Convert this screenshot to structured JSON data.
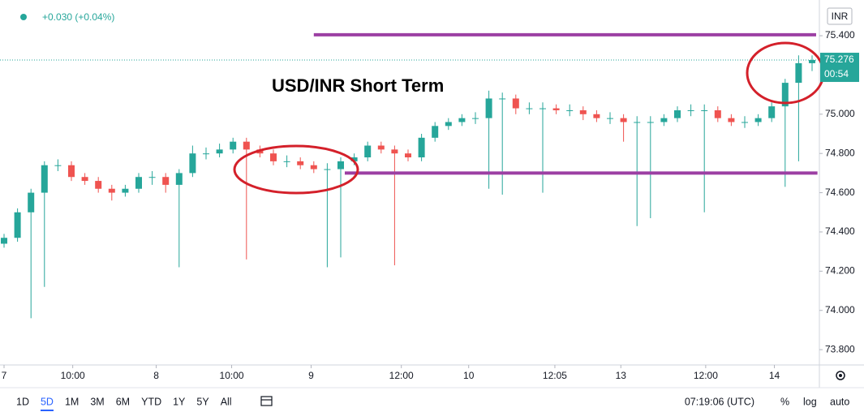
{
  "chart_data": {
    "type": "candlestick",
    "change": "+0.030 (+0.04%)",
    "currency": "INR",
    "annotation": "USD/INR Short Term",
    "countdown": "00:54",
    "up_color": "#26a69a",
    "down_color": "#ef5350",
    "level_color": "#9c3fa3",
    "open": [
      74.34,
      74.37,
      74.5,
      74.6,
      74.74,
      74.74,
      74.68,
      74.66,
      74.62,
      74.6,
      74.62,
      74.68,
      74.68,
      74.64,
      74.7,
      74.8,
      74.8,
      74.82,
      74.86,
      74.82,
      74.8,
      74.76,
      74.76,
      74.74,
      74.72,
      74.72,
      74.76,
      74.78,
      74.84,
      74.82,
      74.8,
      74.78,
      74.88,
      74.94,
      74.96,
      74.98,
      74.98,
      75.08,
      75.08,
      75.03,
      75.03,
      75.03,
      75.02,
      75.02,
      75.0,
      74.98,
      74.98,
      74.96,
      74.96,
      74.96,
      74.98,
      75.02,
      75.02,
      75.02,
      74.98,
      74.96,
      74.96,
      74.98,
      75.04,
      75.16,
      75.26
    ],
    "high": [
      74.39,
      74.52,
      74.62,
      74.76,
      74.77,
      74.76,
      74.7,
      74.68,
      74.64,
      74.64,
      74.7,
      74.71,
      74.7,
      74.72,
      74.84,
      74.83,
      74.85,
      74.88,
      74.88,
      74.84,
      74.82,
      74.79,
      74.78,
      74.76,
      74.75,
      74.78,
      74.8,
      74.86,
      74.86,
      74.84,
      74.82,
      74.9,
      74.96,
      74.98,
      75.0,
      75.01,
      75.12,
      75.11,
      75.1,
      75.06,
      75.06,
      75.05,
      75.05,
      75.04,
      75.02,
      75.01,
      75.0,
      74.99,
      74.99,
      75.0,
      75.04,
      75.05,
      75.05,
      75.04,
      75.0,
      74.99,
      75.0,
      75.06,
      75.18,
      75.3,
      75.3
    ],
    "low": [
      74.32,
      74.35,
      73.96,
      74.12,
      74.71,
      74.66,
      74.64,
      74.6,
      74.56,
      74.58,
      74.6,
      74.64,
      74.6,
      74.22,
      74.68,
      74.77,
      74.78,
      74.8,
      74.26,
      74.78,
      74.74,
      74.73,
      74.72,
      74.7,
      74.22,
      74.27,
      74.74,
      74.76,
      74.8,
      74.23,
      74.76,
      74.76,
      74.86,
      74.92,
      74.94,
      74.95,
      74.62,
      74.59,
      75.0,
      75.0,
      74.6,
      75.0,
      74.99,
      74.97,
      74.96,
      74.95,
      74.86,
      74.43,
      74.47,
      74.94,
      74.96,
      74.99,
      74.5,
      74.96,
      74.94,
      74.93,
      74.94,
      74.96,
      74.63,
      74.76,
      75.22
    ],
    "close": [
      74.37,
      74.5,
      74.6,
      74.74,
      74.74,
      74.68,
      74.66,
      74.62,
      74.6,
      74.62,
      74.68,
      74.68,
      74.64,
      74.7,
      74.8,
      74.8,
      74.82,
      74.86,
      74.82,
      74.8,
      74.76,
      74.76,
      74.74,
      74.72,
      74.72,
      74.76,
      74.78,
      74.84,
      74.82,
      74.8,
      74.78,
      74.88,
      74.94,
      74.96,
      74.98,
      74.98,
      75.08,
      75.08,
      75.03,
      75.03,
      75.03,
      75.02,
      75.02,
      75.0,
      74.98,
      74.98,
      74.96,
      74.96,
      74.96,
      74.98,
      75.02,
      75.02,
      75.02,
      74.98,
      74.96,
      74.96,
      74.98,
      75.04,
      75.16,
      75.26,
      75.276
    ],
    "levels": [
      {
        "value": 75.405,
        "from": 23,
        "to": 60.3
      },
      {
        "value": 74.7,
        "from": 25.3,
        "to": 60.4
      }
    ],
    "xlim": [
      -0.3,
      60.5
    ],
    "xticks": [
      {
        "value": 0,
        "label": "7"
      },
      {
        "value": 5.1,
        "label": "10:00"
      },
      {
        "value": 11.3,
        "label": "8"
      },
      {
        "value": 16.9,
        "label": "10:00"
      },
      {
        "value": 22.8,
        "label": "9"
      },
      {
        "value": 29.5,
        "label": "12:00"
      },
      {
        "value": 34.5,
        "label": "10"
      },
      {
        "value": 40.9,
        "label": "12:05"
      },
      {
        "value": 45.8,
        "label": "13"
      },
      {
        "value": 52.1,
        "label": "12:00"
      },
      {
        "value": 57.2,
        "label": "14"
      }
    ],
    "ylim": [
      73.722,
      75.582
    ],
    "yticks": [
      {
        "value": 73.8,
        "label": "73.800"
      },
      {
        "value": 74.0,
        "label": "74.000"
      },
      {
        "value": 74.2,
        "label": "74.200"
      },
      {
        "value": 74.4,
        "label": "74.400"
      },
      {
        "value": 74.6,
        "label": "74.600"
      },
      {
        "value": 74.8,
        "label": "74.800"
      },
      {
        "value": 75.0,
        "label": "75.000"
      },
      {
        "value": 75.4,
        "label": "75.400"
      }
    ],
    "grid": false
  },
  "toolbar": {
    "ranges": [
      "1D",
      "5D",
      "1M",
      "3M",
      "6M",
      "YTD",
      "1Y",
      "5Y",
      "All"
    ],
    "time": "07:19:06 (UTC)",
    "options": [
      "%",
      "log",
      "auto"
    ]
  }
}
